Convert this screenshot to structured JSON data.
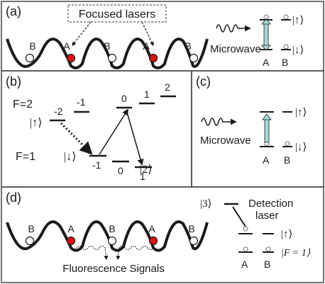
{
  "panels": {
    "a": {
      "label": "(a)",
      "callout": "Focused lasers",
      "site_labels": [
        "B",
        "A",
        "B",
        "A",
        "B"
      ],
      "microwave": "Microwave",
      "state_up": "|↑⟩",
      "state_down": "|↓⟩",
      "atom_a": "A",
      "atom_b": "B"
    },
    "b": {
      "label": "(b)",
      "f2_label": "F=2",
      "f1_label": "F=1",
      "state_up": "|↑⟩",
      "state_down": "|↓⟩",
      "state_two": "|2⟩",
      "f2_mf": [
        "-2",
        "-1",
        "0",
        "1",
        "2"
      ],
      "f1_mf": [
        "-1",
        "0",
        "1"
      ]
    },
    "c": {
      "label": "(c)",
      "microwave": "Microwave",
      "state_up": "|↑⟩",
      "state_down": "|↓⟩",
      "atom_a": "A",
      "atom_b": "B"
    },
    "d": {
      "label": "(d)",
      "site_labels": [
        "B",
        "A",
        "B",
        "A",
        "B"
      ],
      "fluorescence": "Fluorescence Signals",
      "state_three": "|3⟩",
      "detection_line1": "Detection",
      "detection_line2": "laser",
      "state_up": "|↑⟩",
      "state_f1": "|F = 1⟩",
      "atom_a": "A",
      "atom_b": "B"
    }
  },
  "colors": {
    "atom_a": "#dd1111",
    "atom_b": "#ffffff",
    "microwave_arrow": "#a8d8d4",
    "ink": "#1a1a1a"
  }
}
